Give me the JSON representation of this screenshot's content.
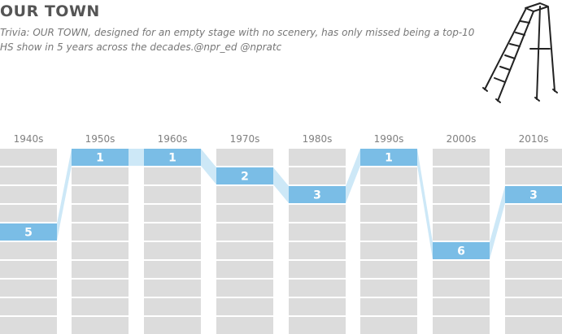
{
  "title": "OUR TOWN",
  "subtitle": "Trivia: OUR TOWN, designed for an empty stage with no scenery, has only missed being a top-10 HS show in 5 years across the decades.@npr_ed @npratc",
  "illustration": "ladder",
  "colors": {
    "cell": "#dcdcdc",
    "highlight": "#7abde6",
    "connector": "#cde8f7",
    "rank_text": "#ffffff",
    "label_text": "#808080"
  },
  "chart_data": {
    "type": "bump",
    "title": "OUR TOWN",
    "categories": [
      "1940s",
      "1950s",
      "1960s",
      "1970s",
      "1980s",
      "1990s",
      "2000s",
      "2010s"
    ],
    "values": [
      5,
      1,
      1,
      2,
      3,
      1,
      6,
      3
    ],
    "ylim": [
      1,
      10
    ],
    "y_inverted": true,
    "grid": true,
    "legend": "none"
  }
}
